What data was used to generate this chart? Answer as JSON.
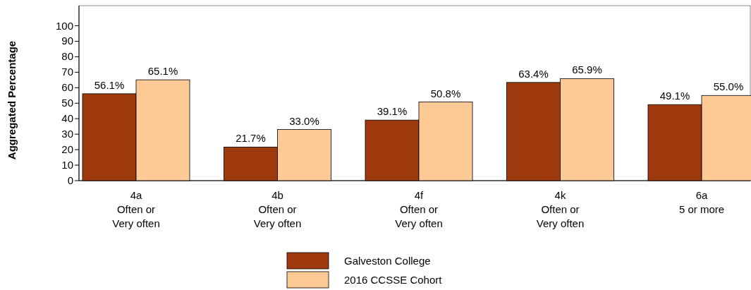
{
  "chart_data": {
    "type": "bar",
    "ylabel": "Aggregated Percentage",
    "categories": [
      "4a\nOften or\nVery often",
      "4b\nOften or\nVery often",
      "4f\nOften or\nVery often",
      "4k\nOften or\nVery often",
      "6a\n5 or more"
    ],
    "series": [
      {
        "name": "Galveston College",
        "color": "#9e3a0e",
        "values": [
          56.1,
          21.7,
          39.1,
          63.4,
          49.1
        ],
        "value_labels": [
          "56.1%",
          "21.7%",
          "39.1%",
          "63.4%",
          "49.1%"
        ]
      },
      {
        "name": "2016 CCSSE Cohort",
        "color": "#fdc995",
        "values": [
          65.1,
          33.0,
          50.8,
          65.9,
          55.0
        ],
        "value_labels": [
          "65.1%",
          "33.0%",
          "50.8%",
          "65.9%",
          "55.0%"
        ]
      }
    ],
    "ylim": [
      0,
      113
    ],
    "yticks": [
      0,
      10,
      20,
      30,
      40,
      50,
      60,
      70,
      80,
      90,
      100
    ],
    "grid": false,
    "legend": "bottom"
  }
}
